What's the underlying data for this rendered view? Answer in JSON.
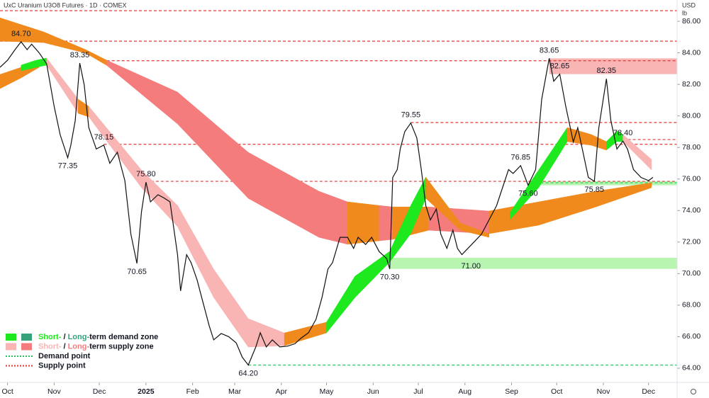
{
  "chart_data": {
    "type": "line",
    "title": "UxC Uranium U3O8 Futures · 1D · COMEX",
    "currency": "USD",
    "unit": "lb",
    "xlim": [
      -5,
      445
    ],
    "ylim": [
      63.1,
      87.35
    ],
    "yticks": [
      {
        "value": 64,
        "label": "64.00"
      },
      {
        "value": 66,
        "label": "66.00"
      },
      {
        "value": 68,
        "label": "68.00"
      },
      {
        "value": 70,
        "label": "70.00"
      },
      {
        "value": 72,
        "label": "72.00"
      },
      {
        "value": 74,
        "label": "74.00"
      },
      {
        "value": 76,
        "label": "76.00"
      },
      {
        "value": 78,
        "label": "78.00"
      },
      {
        "value": 80,
        "label": "80.00"
      },
      {
        "value": 82,
        "label": "82.00"
      },
      {
        "value": 84,
        "label": "84.00"
      },
      {
        "value": 86,
        "label": "86.00"
      }
    ],
    "xticks": [
      {
        "value": 0,
        "label": "Oct"
      },
      {
        "value": 31,
        "label": "Nov"
      },
      {
        "value": 61,
        "label": "Dec"
      },
      {
        "value": 92,
        "label": "2025"
      },
      {
        "value": 123,
        "label": "Feb"
      },
      {
        "value": 151,
        "label": "Mar"
      },
      {
        "value": 182,
        "label": "Apr"
      },
      {
        "value": 212,
        "label": "May"
      },
      {
        "value": 243,
        "label": "Jun"
      },
      {
        "value": 273,
        "label": "Jul"
      },
      {
        "value": 304,
        "label": "Aug"
      },
      {
        "value": 335,
        "label": "Sep"
      },
      {
        "value": 365,
        "label": "Oct"
      },
      {
        "value": 396,
        "label": "Nov"
      },
      {
        "value": 426,
        "label": "Dec"
      }
    ],
    "price": {
      "color": "#111111",
      "x": [
        -5,
        0,
        5,
        9,
        13,
        16,
        21,
        26,
        31,
        35,
        40,
        42,
        45,
        48,
        51,
        54,
        59,
        64,
        68,
        73,
        78,
        82,
        86,
        89,
        92,
        95,
        100,
        104,
        108,
        113,
        115,
        119,
        122,
        126,
        129,
        134,
        137,
        142,
        147,
        152,
        156,
        160,
        165,
        168,
        172,
        176,
        181,
        186,
        191,
        195,
        200,
        205,
        209,
        213,
        216,
        221,
        226,
        230,
        233,
        238,
        242,
        247,
        252,
        254,
        256,
        259,
        261,
        264,
        268,
        272,
        275,
        278,
        281,
        285,
        288,
        292,
        296,
        299,
        302,
        306,
        311,
        315,
        320,
        325,
        329,
        333,
        336,
        341,
        346,
        351,
        355,
        360,
        363,
        367,
        371,
        376,
        379,
        382,
        386,
        390,
        393,
        398,
        401,
        405,
        409,
        412,
        416,
        421,
        426,
        429
      ],
      "values": [
        83.08,
        83.53,
        84.2,
        84.7,
        84.2,
        84.55,
        84.0,
        83.3,
        80.6,
        78.8,
        77.35,
        78.1,
        79.7,
        83.35,
        81.96,
        79.26,
        77.9,
        78.15,
        77.0,
        77.7,
        75.9,
        72.5,
        70.65,
        73.9,
        75.8,
        74.55,
        75.0,
        74.8,
        74.55,
        71.2,
        68.9,
        71.2,
        70.7,
        69.6,
        68.5,
        66.7,
        65.8,
        66.2,
        66.0,
        65.6,
        64.7,
        64.2,
        65.35,
        66.25,
        65.35,
        65.8,
        65.35,
        65.4,
        65.55,
        65.9,
        66.25,
        67.1,
        68.5,
        70.3,
        70.7,
        72.3,
        72.3,
        71.6,
        72.3,
        71.85,
        72.3,
        71.4,
        70.95,
        70.3,
        76.1,
        76.6,
        77.9,
        79.0,
        79.55,
        78.6,
        76.6,
        74.3,
        73.4,
        74.1,
        72.5,
        71.6,
        72.75,
        71.6,
        71.2,
        71.6,
        72.1,
        72.5,
        73.4,
        74.3,
        75.45,
        76.6,
        76.35,
        76.85,
        75.6,
        76.6,
        81.05,
        83.65,
        82.2,
        82.65,
        80.6,
        78.35,
        79.25,
        77.9,
        76.1,
        75.85,
        79.25,
        82.35,
        79.7,
        77.9,
        78.4,
        77.9,
        76.6,
        76.1,
        75.9,
        76.1
      ]
    },
    "bands": [
      {
        "color": "#f08a1c",
        "x": [
          -5,
          24,
          52,
          66
        ],
        "upper": [
          86.22,
          85.33,
          84.2,
          83.53
        ],
        "lower": [
          84.74,
          84.65,
          83.98,
          83.2
        ]
      },
      {
        "color": "#f47c7c",
        "x": [
          66,
          113,
          160,
          207,
          226
        ],
        "upper": [
          83.53,
          81.51,
          77.69,
          75.22,
          74.55
        ],
        "lower": [
          83.2,
          79.49,
          74.77,
          72.3,
          71.86
        ]
      },
      {
        "color": "#f08a1c",
        "x": [
          226,
          247
        ],
        "upper": [
          74.55,
          74.32
        ],
        "lower": [
          71.86,
          72.08
        ]
      },
      {
        "color": "#f47c7c",
        "x": [
          247,
          256
        ],
        "upper": [
          74.32,
          74.23
        ],
        "lower": [
          72.08,
          72.17
        ]
      },
      {
        "color": "#f08a1c",
        "x": [
          256,
          280
        ],
        "upper": [
          74.23,
          74.23
        ],
        "lower": [
          72.17,
          72.75
        ]
      },
      {
        "color": "#f47c7c",
        "x": [
          280,
          320
        ],
        "upper": [
          74.23,
          73.97
        ],
        "lower": [
          72.75,
          72.53
        ]
      },
      {
        "color": "#f08a1c",
        "x": [
          320,
          353,
          391,
          428
        ],
        "upper": [
          73.97,
          74.55,
          75.22,
          75.76
        ],
        "lower": [
          72.53,
          73.07,
          74.23,
          75.45
        ]
      },
      {
        "color": "#f08a1c",
        "x": [
          -5,
          9,
          21
        ],
        "upper": [
          82.63,
          83.08,
          83.53
        ],
        "lower": [
          81.73,
          82.41,
          83.08
        ]
      },
      {
        "color": "#1ee81e",
        "x": [
          9,
          19,
          26
        ],
        "upper": [
          83.22,
          83.53,
          83.67
        ],
        "lower": [
          82.86,
          83.08,
          83.22
        ]
      },
      {
        "color": "#f9b4b4",
        "x": [
          26,
          47
        ],
        "upper": [
          83.67,
          81.06
        ],
        "lower": [
          83.22,
          80.16
        ]
      },
      {
        "color": "#f08a1c",
        "x": [
          47,
          54
        ],
        "upper": [
          81.06,
          80.61
        ],
        "lower": [
          80.16,
          79.94
        ]
      },
      {
        "color": "#f9b4b4",
        "x": [
          54,
          89,
          113,
          137,
          160,
          184
        ],
        "upper": [
          80.61,
          76.57,
          74.32,
          70.28,
          67.14,
          66.24
        ],
        "lower": [
          79.94,
          75.45,
          72.98,
          68.49,
          65.34,
          65.43
        ]
      },
      {
        "color": "#f08a1c",
        "x": [
          184,
          212
        ],
        "upper": [
          66.24,
          66.92
        ],
        "lower": [
          65.43,
          66.24
        ]
      },
      {
        "color": "#1ee81e",
        "x": [
          212,
          231,
          254,
          268,
          278
        ],
        "upper": [
          66.92,
          69.84,
          71.41,
          74.32,
          76.12
        ],
        "lower": [
          66.24,
          68.49,
          70.73,
          72.53,
          74.77
        ]
      },
      {
        "color": "#f08a1c",
        "x": [
          278,
          301,
          320
        ],
        "upper": [
          76.12,
          73.2,
          72.53
        ],
        "lower": [
          74.77,
          72.75,
          72.3
        ]
      },
      {
        "color": "#1ee81e",
        "x": [
          334,
          353,
          372
        ],
        "upper": [
          73.88,
          76.57,
          79.26
        ],
        "lower": [
          73.43,
          75.45,
          78.37
        ]
      },
      {
        "color": "#f08a1c",
        "x": [
          372,
          388,
          398
        ],
        "upper": [
          79.26,
          78.82,
          78.37
        ],
        "lower": [
          78.37,
          78.14,
          77.83
        ]
      },
      {
        "color": "#1ee81e",
        "x": [
          398,
          405,
          409
        ],
        "upper": [
          78.37,
          79.04,
          78.82
        ],
        "lower": [
          77.83,
          78.37,
          78.37
        ]
      },
      {
        "color": "#f9b4b4",
        "x": [
          409,
          428
        ],
        "upper": [
          78.82,
          77.24
        ],
        "lower": [
          78.37,
          76.57
        ]
      }
    ],
    "zones": [
      {
        "low": 82.65,
        "high": 83.65,
        "from": 360,
        "color": "#f9b4b4"
      },
      {
        "low": 70.3,
        "high": 71.0,
        "from": 254,
        "color": "#b8f5b0"
      },
      {
        "low": 75.6,
        "high": 75.85,
        "from": 351,
        "color": "#b8f5b0"
      }
    ],
    "levels": [
      {
        "value": 86.67,
        "from": -5,
        "color": "#e53935"
      },
      {
        "value": 84.74,
        "from": -5,
        "color": "#e53935"
      },
      {
        "value": 83.5,
        "from": 66,
        "color": "#e53935"
      },
      {
        "value": 79.58,
        "from": 268,
        "color": "#e53935"
      },
      {
        "value": 78.2,
        "from": 64,
        "color": "#e53935"
      },
      {
        "value": 78.5,
        "from": 409,
        "color": "#e53935"
      },
      {
        "value": 75.85,
        "from": 92,
        "color": "#e53935"
      },
      {
        "value": 64.2,
        "from": 160,
        "color": "#22c55e"
      },
      {
        "value": 75.76,
        "from": 351,
        "color": "#22c55e"
      }
    ],
    "annotations": [
      {
        "value": 84.7,
        "label": "84.70",
        "x": 9
      },
      {
        "value": 83.35,
        "label": "83.35",
        "x": 48
      },
      {
        "value": 77.35,
        "label": "77.35",
        "x": 40
      },
      {
        "value": 78.15,
        "label": "78.15",
        "x": 64
      },
      {
        "value": 75.8,
        "label": "75.80",
        "x": 92
      },
      {
        "value": 70.65,
        "label": "70.65",
        "x": 86
      },
      {
        "value": 64.2,
        "label": "64.20",
        "x": 160
      },
      {
        "value": 70.3,
        "label": "70.30",
        "x": 254
      },
      {
        "value": 79.55,
        "label": "79.55",
        "x": 268
      },
      {
        "value": 71.0,
        "label": "71.00",
        "x": 308
      },
      {
        "value": 76.85,
        "label": "76.85",
        "x": 341
      },
      {
        "value": 75.6,
        "label": "75.60",
        "x": 346
      },
      {
        "value": 83.65,
        "label": "83.65",
        "x": 360
      },
      {
        "value": 82.65,
        "label": "82.65",
        "x": 367
      },
      {
        "value": 75.85,
        "label": "75.85",
        "x": 390
      },
      {
        "value": 82.35,
        "label": "82.35",
        "x": 398
      },
      {
        "value": 78.4,
        "label": "78.40",
        "x": 409
      }
    ],
    "legend": [
      {
        "parts": [
          "Short-",
          " / ",
          "Long-",
          "term demand zone"
        ],
        "colors": [
          "#1ee81e",
          "#34a37a"
        ]
      },
      {
        "parts": [
          "Short-",
          " / ",
          "Long-",
          "term supply zone"
        ],
        "colors": [
          "#f9b4b4",
          "#f47c7c"
        ]
      },
      {
        "label": "Demand point",
        "color": "#22c55e"
      },
      {
        "label": "Supply point",
        "color": "#e53935"
      }
    ]
  }
}
